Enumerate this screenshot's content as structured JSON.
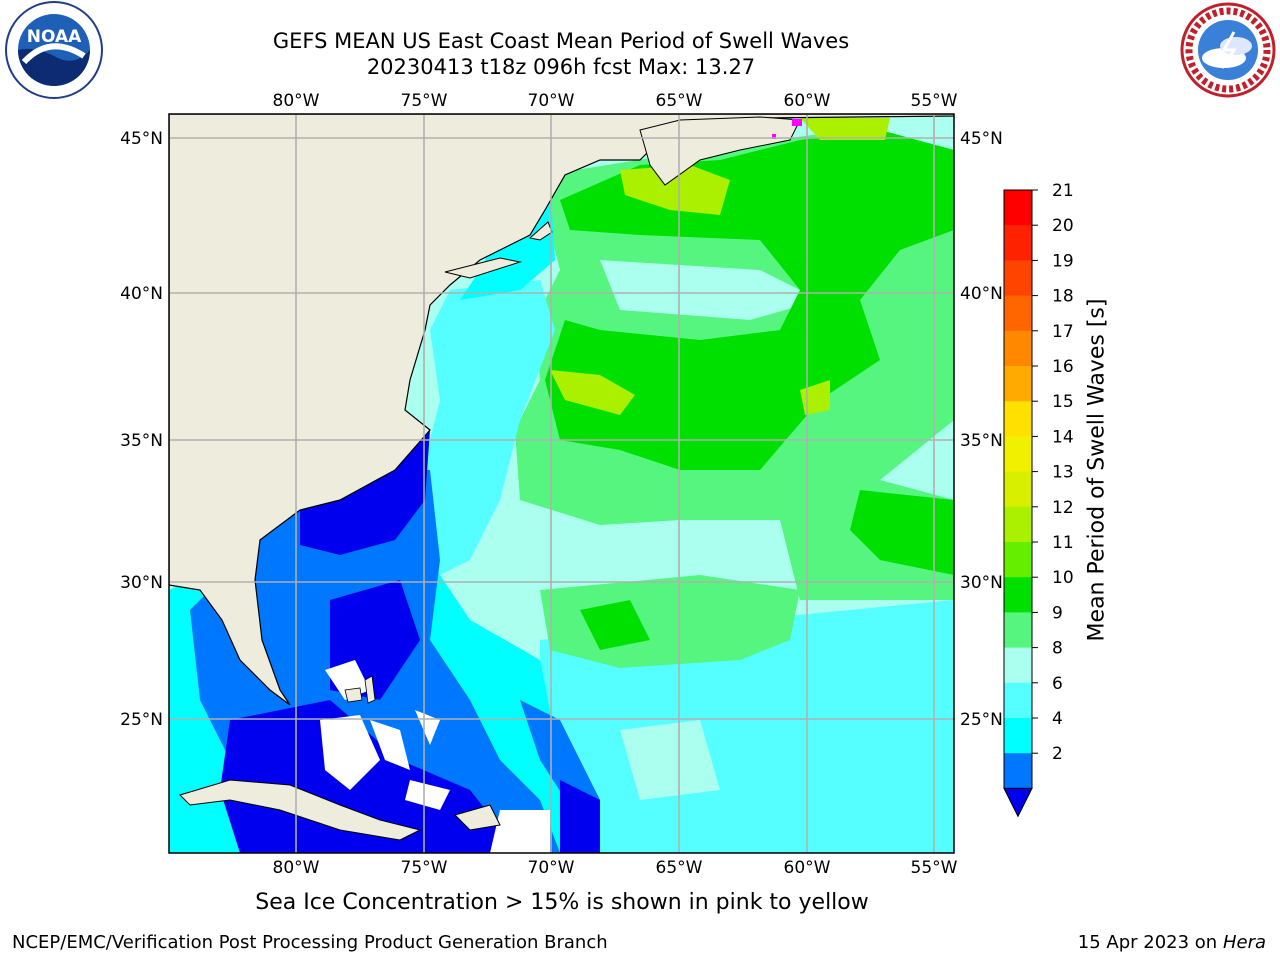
{
  "title": {
    "line1": "GEFS MEAN US East Coast Mean Period of Swell Waves",
    "line2": "20230413 t18z 096h fcst   Max: 13.27"
  },
  "logos": {
    "left": "noaa-logo",
    "left_text": "NOAA",
    "right": "national-weather-service-logo"
  },
  "map": {
    "lon_labels": [
      "80°W",
      "75°W",
      "70°W",
      "65°W",
      "60°W",
      "55°W"
    ],
    "lat_labels": [
      "45°N",
      "40°N",
      "35°N",
      "30°N",
      "25°N"
    ],
    "land_color": "#eeecdc",
    "grid_color": "#b0b0b0"
  },
  "colorbar": {
    "label": "Mean Period of Swell Waves [s]",
    "ticks": [
      "21",
      "20",
      "19",
      "18",
      "17",
      "16",
      "15",
      "14",
      "13",
      "12",
      "11",
      "10",
      "9",
      "8",
      "6",
      "4",
      "2"
    ],
    "colors": [
      "#ff0000",
      "#ff2200",
      "#ff4400",
      "#ff6600",
      "#ff8800",
      "#ffaa00",
      "#ffe000",
      "#f0f000",
      "#d8f000",
      "#aaf000",
      "#66ee00",
      "#00e000",
      "#55f580",
      "#aaffee",
      "#55ffff",
      "#00ffff",
      "#0077ff"
    ],
    "underflow_color": "#0000ee"
  },
  "note": "Sea Ice Concentration > 15% is shown in pink to yellow",
  "footer": {
    "left": "NCEP/EMC/Verification Post Processing Product Generation Branch",
    "right_prefix": "15 Apr 2023 on ",
    "right_host": "Hera"
  }
}
